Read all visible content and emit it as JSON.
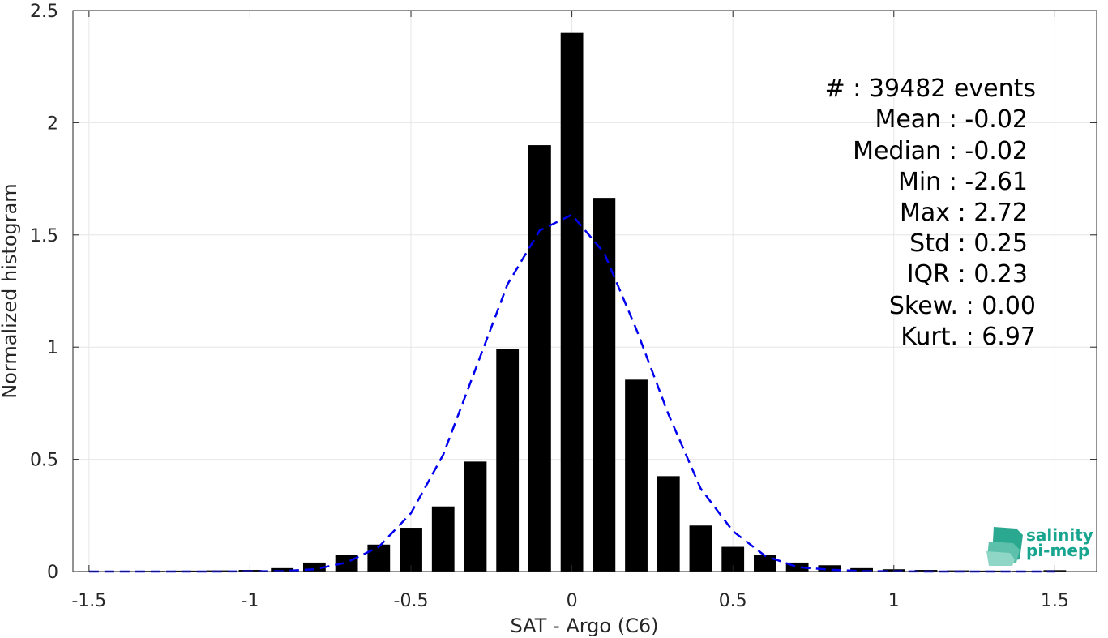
{
  "chart_data": {
    "type": "bar",
    "xlabel": "SAT - Argo (C6)",
    "ylabel": "Normalized histogram",
    "xlim": [
      -1.55,
      1.63
    ],
    "ylim": [
      0,
      2.5
    ],
    "xticks": [
      -1.5,
      -1,
      -0.5,
      0,
      0.5,
      1,
      1.5
    ],
    "xtick_labels": [
      "-1.5",
      "-1",
      "-0.5",
      "0",
      "0.5",
      "1",
      "1.5"
    ],
    "yticks": [
      0,
      0.5,
      1,
      1.5,
      2,
      2.5
    ],
    "ytick_labels": [
      "0",
      "0.5",
      "1",
      "1.5",
      "2",
      "2.5"
    ],
    "grid": true,
    "bar_width": 0.07,
    "series": [
      {
        "type": "bar",
        "color": "#000000",
        "x": [
          -1.5,
          -1.4,
          -1.3,
          -1.2,
          -1.1,
          -1.0,
          -0.9,
          -0.8,
          -0.7,
          -0.6,
          -0.5,
          -0.4,
          -0.3,
          -0.2,
          -0.1,
          0.0,
          0.1,
          0.2,
          0.3,
          0.4,
          0.5,
          0.6,
          0.7,
          0.8,
          0.9,
          1.0,
          1.1,
          1.2,
          1.3,
          1.4,
          1.5
        ],
        "values": [
          0.002,
          0.002,
          0.003,
          0.004,
          0.005,
          0.007,
          0.015,
          0.04,
          0.075,
          0.12,
          0.195,
          0.29,
          0.49,
          0.99,
          1.9,
          2.4,
          1.665,
          0.855,
          0.425,
          0.205,
          0.11,
          0.075,
          0.04,
          0.028,
          0.015,
          0.01,
          0.007,
          0.005,
          0.004,
          0.003,
          0.006
        ]
      },
      {
        "type": "line",
        "style": "dashed",
        "color": "#0000ee",
        "x": [
          -1.5,
          -1.3,
          -1.1,
          -0.9,
          -0.8,
          -0.7,
          -0.6,
          -0.5,
          -0.4,
          -0.3,
          -0.2,
          -0.1,
          0.0,
          0.1,
          0.2,
          0.3,
          0.4,
          0.5,
          0.6,
          0.7,
          0.8,
          0.9,
          1.1,
          1.3,
          1.5
        ],
        "values": [
          0,
          0,
          0,
          0.002,
          0.01,
          0.04,
          0.11,
          0.26,
          0.52,
          0.9,
          1.28,
          1.52,
          1.59,
          1.42,
          1.08,
          0.7,
          0.37,
          0.18,
          0.07,
          0.02,
          0.008,
          0.002,
          0,
          0,
          0
        ]
      }
    ]
  },
  "stats": [
    "#  : 39482 events",
    "Mean : -0.02",
    "Median : -0.02",
    "Min : -2.61",
    "Max : 2.72",
    "Std : 0.25",
    "IQR : 0.23",
    "Skew. : 0.00",
    "Kurt. : 6.97"
  ],
  "logo": {
    "line1": "salinity",
    "line2": "pi-mep"
  },
  "colors": {
    "bars": "#000000",
    "fit": "#0000ee",
    "logo": "#17a58f"
  }
}
